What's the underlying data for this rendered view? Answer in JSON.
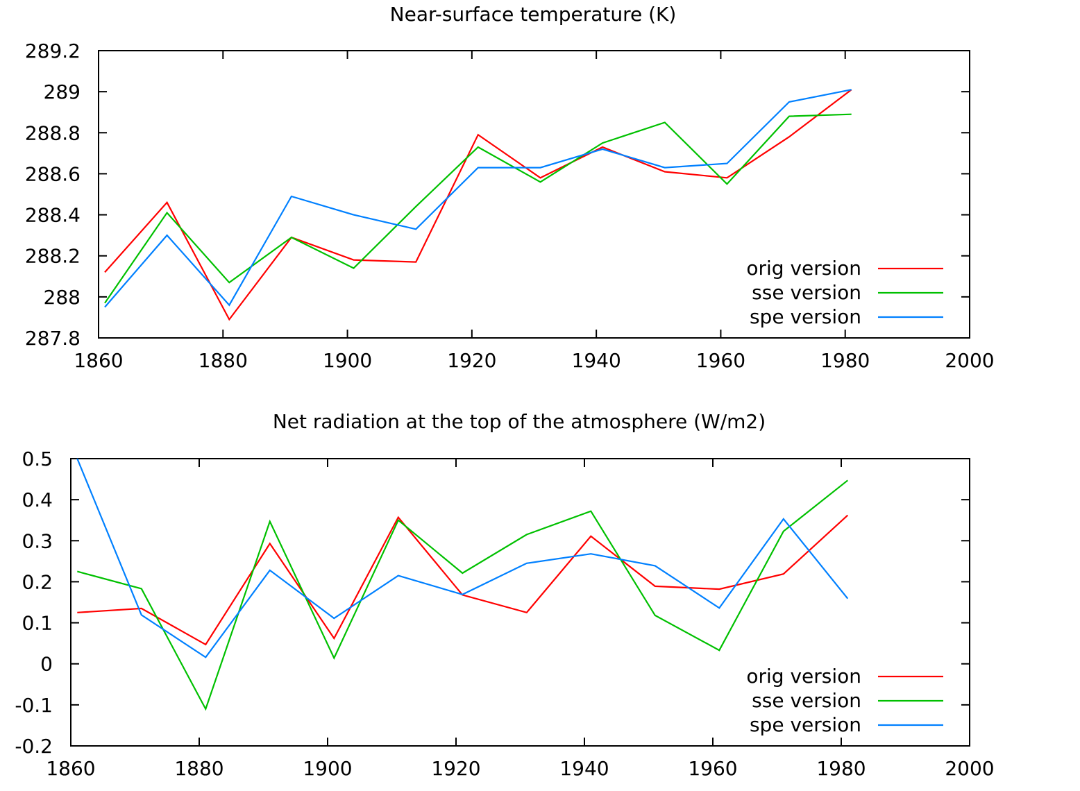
{
  "chart_data": [
    {
      "type": "line",
      "title": "Near-surface temperature (K)",
      "xlabel": "",
      "ylabel": "",
      "xlim": [
        1860,
        2000
      ],
      "ylim": [
        287.8,
        289.2
      ],
      "xticks": [
        1860,
        1880,
        1900,
        1920,
        1940,
        1960,
        1980,
        2000
      ],
      "yticks": [
        287.8,
        288,
        288.2,
        288.4,
        288.6,
        288.8,
        289,
        289.2
      ],
      "ytick_labels": [
        "287.8",
        "288",
        "288.2",
        "288.4",
        "288.6",
        "288.8",
        "289",
        "289.2"
      ],
      "grid": false,
      "legend_position": "bottom-right",
      "x": [
        1861,
        1871,
        1881,
        1891,
        1901,
        1911,
        1921,
        1931,
        1941,
        1951,
        1961,
        1971,
        1981
      ],
      "series": [
        {
          "name": "orig version",
          "color": "#ff0000",
          "values": [
            288.12,
            288.46,
            287.89,
            288.29,
            288.18,
            288.17,
            288.79,
            288.58,
            288.73,
            288.61,
            288.58,
            288.78,
            289.01
          ]
        },
        {
          "name": "sse version",
          "color": "#00c000",
          "values": [
            287.97,
            288.41,
            288.07,
            288.29,
            288.14,
            288.44,
            288.73,
            288.56,
            288.75,
            288.85,
            288.55,
            288.88,
            288.89
          ]
        },
        {
          "name": "spe version",
          "color": "#0080ff",
          "values": [
            287.95,
            288.3,
            287.96,
            288.49,
            288.4,
            288.33,
            288.63,
            288.63,
            288.72,
            288.63,
            288.65,
            288.95,
            289.01
          ]
        }
      ]
    },
    {
      "type": "line",
      "title": "Net radiation at the top of the atmosphere (W/m2)",
      "xlabel": "",
      "ylabel": "",
      "xlim": [
        1860,
        2000
      ],
      "ylim": [
        -0.2,
        0.5
      ],
      "xticks": [
        1860,
        1880,
        1900,
        1920,
        1940,
        1960,
        1980,
        2000
      ],
      "yticks": [
        -0.2,
        -0.1,
        0,
        0.1,
        0.2,
        0.3,
        0.4,
        0.5
      ],
      "ytick_labels": [
        "-0.2",
        "-0.1",
        "0",
        "0.1",
        "0.2",
        "0.3",
        "0.4",
        "0.5"
      ],
      "grid": false,
      "legend_position": "bottom-right",
      "x": [
        1861,
        1871,
        1881,
        1891,
        1901,
        1911,
        1921,
        1931,
        1941,
        1951,
        1961,
        1971,
        1981
      ],
      "series": [
        {
          "name": "orig version",
          "color": "#ff0000",
          "values": [
            0.125,
            0.135,
            0.047,
            0.293,
            0.062,
            0.357,
            0.168,
            0.125,
            0.311,
            0.189,
            0.182,
            0.219,
            0.362
          ]
        },
        {
          "name": "sse version",
          "color": "#00c000",
          "values": [
            0.225,
            0.183,
            -0.11,
            0.347,
            0.014,
            0.35,
            0.221,
            0.315,
            0.372,
            0.118,
            0.033,
            0.323,
            0.447
          ]
        },
        {
          "name": "spe version",
          "color": "#0080ff",
          "values": [
            0.5,
            0.119,
            0.016,
            0.228,
            0.111,
            0.215,
            0.169,
            0.245,
            0.268,
            0.239,
            0.136,
            0.353,
            0.159
          ]
        }
      ]
    }
  ]
}
